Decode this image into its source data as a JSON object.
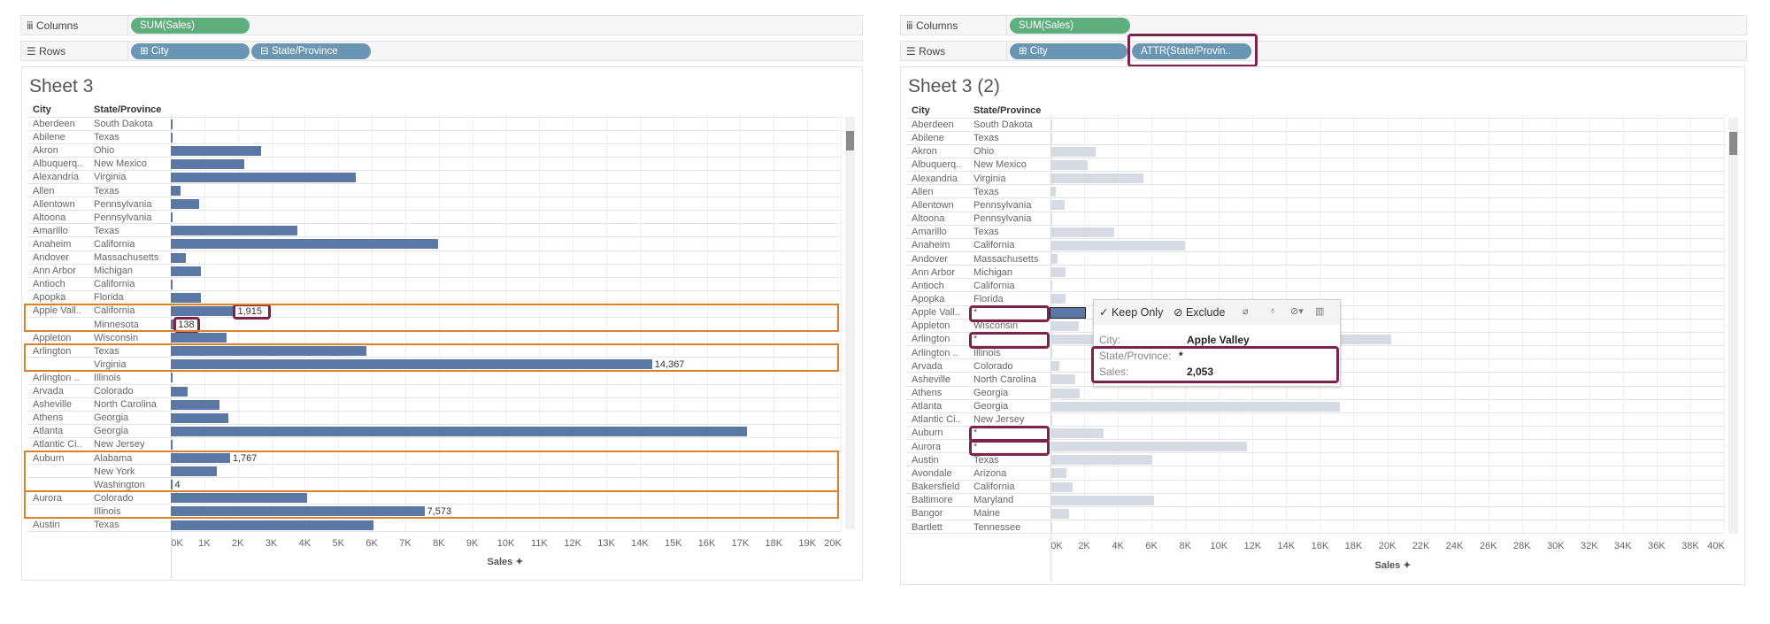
{
  "colors": {
    "bar": "#5b77a6",
    "bar_dimmed": "#d6dbe3",
    "bar_selected": "#5b77a6",
    "highlight_orange": "#d9822b",
    "highlight_maroon": "#7d2248",
    "pill_measure": "#5fae7d",
    "pill_dimension": "#6a96b4"
  },
  "left": {
    "columns_label": "Columns",
    "rows_label": "Rows",
    "columns_pill": "SUM(Sales)",
    "rows_pills": [
      "City",
      "State/Province"
    ],
    "sheet_title": "Sheet 3",
    "headers": {
      "city": "City",
      "state": "State/Province"
    },
    "highlight_groups": [
      "Apple Vall..",
      "Arlington",
      "Auburn",
      "Aurora"
    ],
    "axis_title": "Sales",
    "chart_data": {
      "type": "bar",
      "xlabel": "Sales",
      "xlim": [
        0,
        20000
      ],
      "ticks": [
        "0K",
        "1K",
        "2K",
        "3K",
        "4K",
        "5K",
        "6K",
        "7K",
        "8K",
        "9K",
        "10K",
        "11K",
        "12K",
        "13K",
        "14K",
        "15K",
        "16K",
        "17K",
        "18K",
        "19K",
        "20K"
      ],
      "rows": [
        {
          "city": "Aberdeen",
          "state": "South Dakota",
          "value": 25
        },
        {
          "city": "Abilene",
          "state": "Texas",
          "value": 2
        },
        {
          "city": "Akron",
          "state": "Ohio",
          "value": 2700
        },
        {
          "city": "Albuquerq..",
          "state": "New Mexico",
          "value": 2200
        },
        {
          "city": "Alexandria",
          "state": "Virginia",
          "value": 5520
        },
        {
          "city": "Allen",
          "state": "Texas",
          "value": 290
        },
        {
          "city": "Allentown",
          "state": "Pennsylvania",
          "value": 850
        },
        {
          "city": "Altoona",
          "state": "Pennsylvania",
          "value": 21
        },
        {
          "city": "Amarillo",
          "state": "Texas",
          "value": 3770
        },
        {
          "city": "Anaheim",
          "state": "California",
          "value": 7990
        },
        {
          "city": "Andover",
          "state": "Massachusetts",
          "value": 440
        },
        {
          "city": "Ann Arbor",
          "state": "Michigan",
          "value": 890
        },
        {
          "city": "Antioch",
          "state": "California",
          "value": 25
        },
        {
          "city": "Apopka",
          "state": "Florida",
          "value": 890
        },
        {
          "city": "Apple Vall..",
          "state": "California",
          "value": 1915,
          "label": "1,915",
          "label_boxed": true
        },
        {
          "city": "",
          "state": "Minnesota",
          "value": 138,
          "label": "138",
          "label_boxed": true
        },
        {
          "city": "Appleton",
          "state": "Wisconsin",
          "value": 1660
        },
        {
          "city": "Arlington",
          "state": "Texas",
          "value": 5850
        },
        {
          "city": "",
          "state": "Virginia",
          "value": 14367,
          "label": "14,367"
        },
        {
          "city": "Arlington ..",
          "state": "Illinois",
          "value": 20
        },
        {
          "city": "Arvada",
          "state": "Colorado",
          "value": 500
        },
        {
          "city": "Asheville",
          "state": "North Carolina",
          "value": 1460
        },
        {
          "city": "Athens",
          "state": "Georgia",
          "value": 1710
        },
        {
          "city": "Atlanta",
          "state": "Georgia",
          "value": 17200
        },
        {
          "city": "Atlantic Ci..",
          "state": "New Jersey",
          "value": 20
        },
        {
          "city": "Auburn",
          "state": "Alabama",
          "value": 1767,
          "label": "1,767"
        },
        {
          "city": "",
          "state": "New York",
          "value": 1370
        },
        {
          "city": "",
          "state": "Washington",
          "value": 4,
          "label": "4"
        },
        {
          "city": "Aurora",
          "state": "Colorado",
          "value": 4070
        },
        {
          "city": "",
          "state": "Illinois",
          "value": 7573,
          "label": "7,573"
        },
        {
          "city": "Austin",
          "state": "Texas",
          "value": 6050
        }
      ]
    }
  },
  "right": {
    "columns_label": "Columns",
    "rows_label": "Rows",
    "columns_pill": "SUM(Sales)",
    "rows_pills": [
      "City",
      "ATTR(State/Provin.."
    ],
    "sheet_title": "Sheet 3 (2)",
    "headers": {
      "city": "City",
      "state": "State/Province"
    },
    "axis_title": "Sales",
    "chart_data": {
      "type": "bar",
      "xlabel": "Sales",
      "xlim": [
        0,
        40000
      ],
      "ticks": [
        "0K",
        "2K",
        "4K",
        "6K",
        "8K",
        "10K",
        "12K",
        "14K",
        "16K",
        "18K",
        "20K",
        "22K",
        "24K",
        "26K",
        "28K",
        "30K",
        "32K",
        "34K",
        "36K",
        "38K",
        "40K"
      ],
      "rows": [
        {
          "city": "Aberdeen",
          "state": "South Dakota",
          "value": 25
        },
        {
          "city": "Abilene",
          "state": "Texas",
          "value": 2
        },
        {
          "city": "Akron",
          "state": "Ohio",
          "value": 2700
        },
        {
          "city": "Albuquerq..",
          "state": "New Mexico",
          "value": 2200
        },
        {
          "city": "Alexandria",
          "state": "Virginia",
          "value": 5520
        },
        {
          "city": "Allen",
          "state": "Texas",
          "value": 290
        },
        {
          "city": "Allentown",
          "state": "Pennsylvania",
          "value": 850
        },
        {
          "city": "Altoona",
          "state": "Pennsylvania",
          "value": 21
        },
        {
          "city": "Amarillo",
          "state": "Texas",
          "value": 3770
        },
        {
          "city": "Anaheim",
          "state": "California",
          "value": 7990
        },
        {
          "city": "Andover",
          "state": "Massachusetts",
          "value": 440
        },
        {
          "city": "Ann Arbor",
          "state": "Michigan",
          "value": 890
        },
        {
          "city": "Antioch",
          "state": "California",
          "value": 25
        },
        {
          "city": "Apopka",
          "state": "Florida",
          "value": 890
        },
        {
          "city": "Apple Vall..",
          "state": "*",
          "value": 2053,
          "selected": true,
          "state_boxed": true
        },
        {
          "city": "Appleton",
          "state": "Wisconsin",
          "value": 1660
        },
        {
          "city": "Arlington",
          "state": "*",
          "value": 20217,
          "state_boxed": true
        },
        {
          "city": "Arlington ..",
          "state": "Illinois",
          "value": 20
        },
        {
          "city": "Arvada",
          "state": "Colorado",
          "value": 500
        },
        {
          "city": "Asheville",
          "state": "North Carolina",
          "value": 1460
        },
        {
          "city": "Athens",
          "state": "Georgia",
          "value": 1710
        },
        {
          "city": "Atlanta",
          "state": "Georgia",
          "value": 17200
        },
        {
          "city": "Atlantic Ci..",
          "state": "New Jersey",
          "value": 20
        },
        {
          "city": "Auburn",
          "state": "*",
          "value": 3141,
          "state_boxed": true
        },
        {
          "city": "Aurora",
          "state": "*",
          "value": 11656,
          "state_boxed": true
        },
        {
          "city": "Austin",
          "state": "Texas",
          "value": 6050
        },
        {
          "city": "Avondale",
          "state": "Arizona",
          "value": 950
        },
        {
          "city": "Bakersfield",
          "state": "California",
          "value": 1330
        },
        {
          "city": "Baltimore",
          "state": "Maryland",
          "value": 6140
        },
        {
          "city": "Bangor",
          "state": "Maine",
          "value": 1130
        },
        {
          "city": "Bartlett",
          "state": "Tennessee",
          "value": 20
        }
      ]
    },
    "tooltip": {
      "keep_only": "✓ Keep Only",
      "exclude": "⊘ Exclude",
      "icons": [
        "paperclip-icon",
        "pin-icon",
        "group-icon",
        "view-data-icon"
      ],
      "city_label": "City:",
      "city_value": "Apple Valley",
      "state_label": "State/Province:",
      "state_value": "*",
      "sales_label": "Sales:",
      "sales_value": "2,053"
    }
  }
}
